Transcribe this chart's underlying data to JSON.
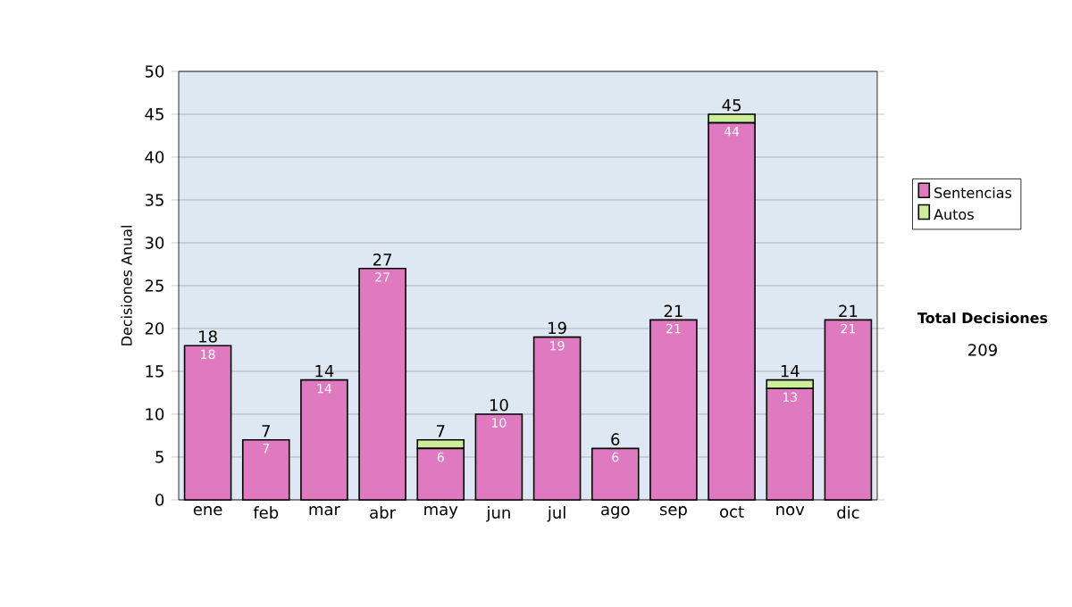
{
  "chart_data": {
    "type": "bar",
    "stacked": true,
    "ylabel": "Decisiones Anual",
    "categories": [
      "ene",
      "feb",
      "mar",
      "abr",
      "may",
      "jun",
      "jul",
      "ago",
      "sep",
      "oct",
      "nov",
      "dic"
    ],
    "series": [
      {
        "name": "Sentencias",
        "color": "#e07ac0",
        "values": [
          18,
          7,
          14,
          27,
          6,
          10,
          19,
          6,
          21,
          44,
          13,
          21
        ],
        "value_labels": [
          "18",
          "7",
          "14",
          "27",
          "6",
          "10",
          "19",
          "6",
          "21",
          "44",
          "13",
          "21"
        ]
      },
      {
        "name": "Autos",
        "color": "#ccee99",
        "values": [
          0,
          0,
          0,
          0,
          1,
          0,
          0,
          0,
          0,
          1,
          1,
          0
        ]
      }
    ],
    "totals": [
      "18",
      "7",
      "14",
      "27",
      "7",
      "10",
      "19",
      "6",
      "21",
      "45",
      "14",
      "21"
    ],
    "ylim": [
      0,
      50
    ],
    "yticks": [
      0,
      5,
      10,
      15,
      20,
      25,
      30,
      35,
      40,
      45,
      50
    ],
    "grid": "y",
    "legend": "right",
    "annotations": [
      "Total Decisiones",
      "209"
    ]
  }
}
